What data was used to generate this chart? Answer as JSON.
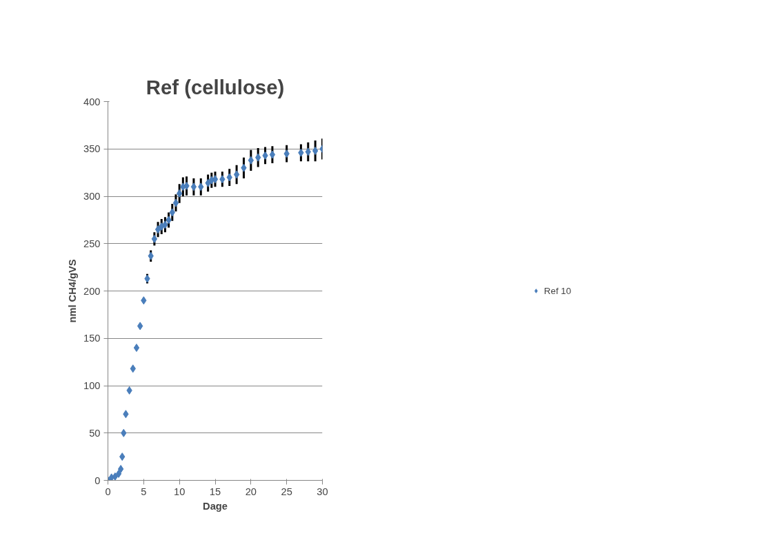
{
  "chart_data": {
    "type": "scatter",
    "title": "Ref (cellulose)",
    "xlabel": "Dage",
    "ylabel": "nml CH4/gVS",
    "x": [
      0,
      0.5,
      1,
      1.5,
      1.8,
      2,
      2.2,
      2.5,
      3,
      3.5,
      4,
      4.5,
      5,
      5.5,
      6,
      6.5,
      7,
      7.5,
      8,
      8.5,
      9,
      9.5,
      10,
      10.5,
      11,
      12,
      13,
      14,
      14.5,
      15,
      16,
      17,
      18,
      19,
      20,
      21,
      22,
      23,
      25,
      27,
      28,
      29,
      30
    ],
    "series": [
      {
        "name": "Ref 10",
        "color": "#4a7ebb",
        "values": [
          0,
          3,
          4,
          7,
          12,
          25,
          50,
          70,
          95,
          118,
          140,
          163,
          190,
          213,
          237,
          255,
          265,
          268,
          270,
          275,
          283,
          293,
          303,
          310,
          311,
          310,
          310,
          314,
          317,
          318,
          318,
          320,
          323,
          330,
          338,
          341,
          343,
          344,
          345,
          346,
          347,
          348,
          350
        ],
        "errors": [
          null,
          null,
          null,
          null,
          null,
          null,
          null,
          null,
          null,
          null,
          null,
          null,
          null,
          5,
          6,
          7,
          8,
          8,
          8,
          8,
          9,
          9,
          10,
          10,
          10,
          9,
          9,
          9,
          8,
          8,
          8,
          9,
          10,
          11,
          11,
          10,
          9,
          9,
          9,
          9,
          10,
          11,
          11
        ]
      }
    ],
    "xlim": [
      0,
      30
    ],
    "xticks": [
      0,
      5,
      10,
      15,
      20,
      25,
      30
    ],
    "ylim": [
      0,
      400
    ],
    "yticks": [
      0,
      50,
      100,
      150,
      200,
      250,
      300,
      350,
      400
    ],
    "grid": "y",
    "legend": "right",
    "marker": "diamond"
  }
}
